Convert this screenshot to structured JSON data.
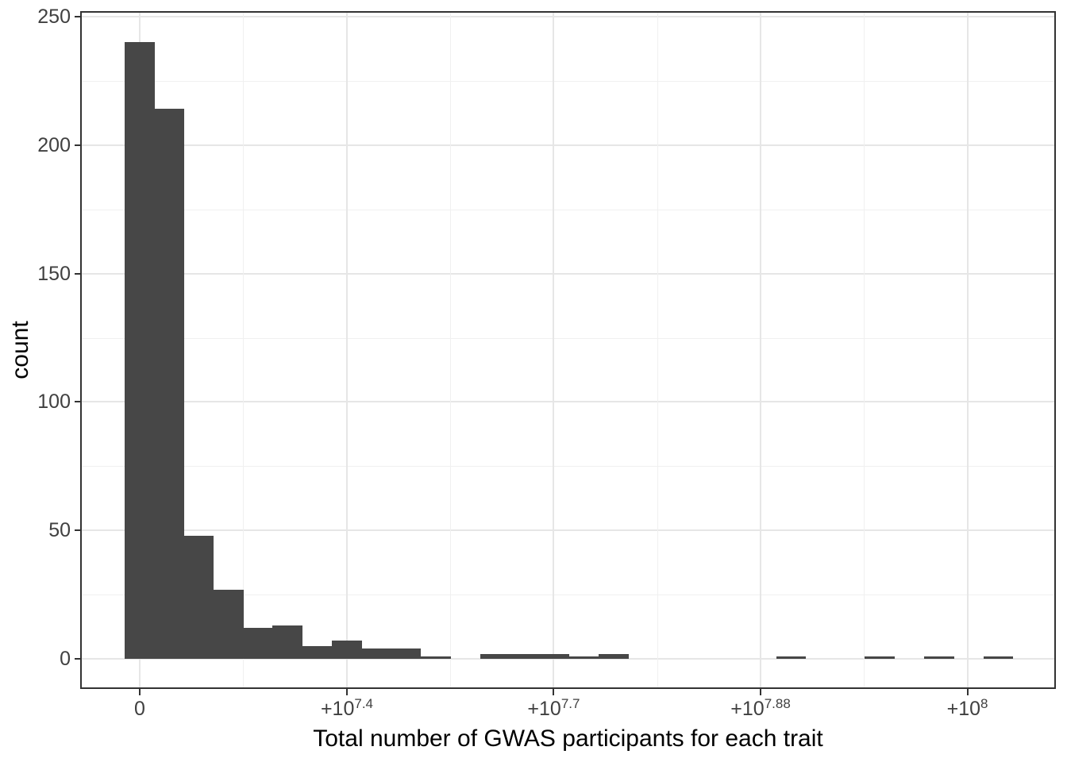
{
  "chart_data": {
    "type": "bar",
    "subtype": "histogram",
    "title": "",
    "xlabel": "Total number of GWAS participants for each trait",
    "ylabel": "count",
    "legend_position": "none",
    "grid": "major and minor, light gray on white panel",
    "x_scale": "pseudo-log (signed log10) axis",
    "x_ticks": [
      {
        "base": "0",
        "sup": "",
        "pos_frac": 0.0603
      },
      {
        "base": "+10",
        "sup": "7.4",
        "pos_frac": 0.273
      },
      {
        "base": "+10",
        "sup": "7.7",
        "pos_frac": 0.4853
      },
      {
        "base": "+10",
        "sup": "7.88",
        "pos_frac": 0.6977
      },
      {
        "base": "+10",
        "sup": "8",
        "pos_frac": 0.91
      }
    ],
    "y_ticks": [
      0,
      50,
      100,
      150,
      200,
      250
    ],
    "ylim": [
      0,
      250
    ],
    "bins": {
      "n_bins": 30,
      "start_frac": 0.0448,
      "width_frac": 0.0304,
      "counts": [
        240,
        214,
        48,
        27,
        12,
        13,
        5,
        7,
        4,
        4,
        1,
        0,
        2,
        2,
        2,
        1,
        2,
        0,
        0,
        0,
        0,
        0,
        1,
        0,
        0,
        1,
        0,
        1,
        0,
        1
      ]
    },
    "colors": {
      "bar_fill": "#474747",
      "panel_border": "#333333",
      "tick_mark": "#333333",
      "tick_text": "#404040",
      "axis_title_text": "#000000",
      "grid_major": "#e6e6e6",
      "grid_minor": "#f0f0f0",
      "background": "#ffffff"
    }
  }
}
